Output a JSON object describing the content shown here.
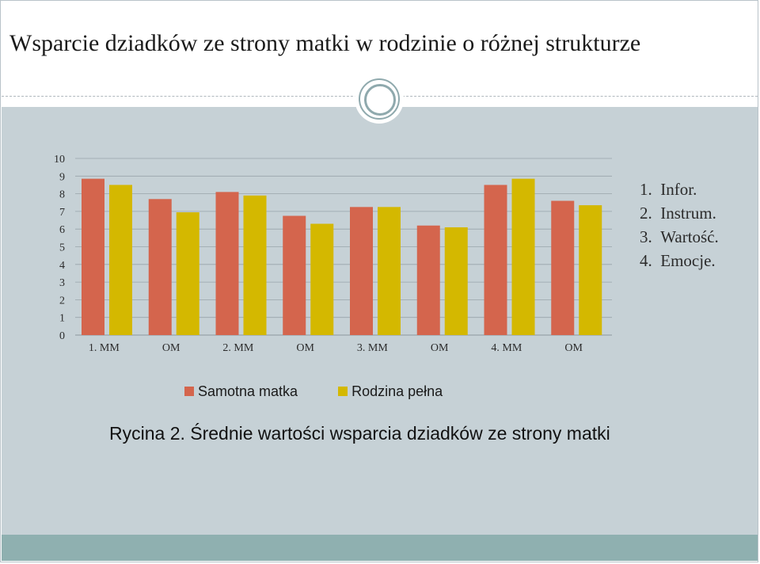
{
  "slide": {
    "title": "Wsparcie dziadków ze strony matki w rodzinie o różnej strukturze",
    "caption": "Rycina 2. Średnie wartości wsparcia dziadków ze strony matki"
  },
  "notes": [
    {
      "num": "1.",
      "text": "Infor."
    },
    {
      "num": "2.",
      "text": "Instrum."
    },
    {
      "num": "3.",
      "text": "Wartość."
    },
    {
      "num": "4.",
      "text": "Emocje."
    }
  ],
  "colors": {
    "series1": "#d4654d",
    "series2": "#d4b800",
    "content_bg": "#c6d1d6",
    "footer_bg": "#8fb0b0",
    "grid": "#98a4aa"
  },
  "chart_data": {
    "type": "bar",
    "categories": [
      "1. MM",
      "OM",
      "2. MM",
      "OM",
      "3. MM",
      "OM",
      "4. MM",
      "OM"
    ],
    "series": [
      {
        "name": "Samotna matka",
        "values": [
          8.85,
          7.7,
          8.1,
          6.75,
          7.25,
          6.2,
          8.5,
          7.6
        ]
      },
      {
        "name": "Rodzina pełna",
        "values": [
          8.5,
          6.95,
          7.9,
          6.3,
          7.25,
          6.1,
          8.85,
          7.35
        ]
      }
    ],
    "ylim": [
      0,
      10
    ],
    "yticks": [
      "0",
      "1",
      "2",
      "3",
      "4",
      "5",
      "6",
      "7",
      "8",
      "9",
      "10"
    ],
    "grid": true,
    "legend": "bottom"
  }
}
